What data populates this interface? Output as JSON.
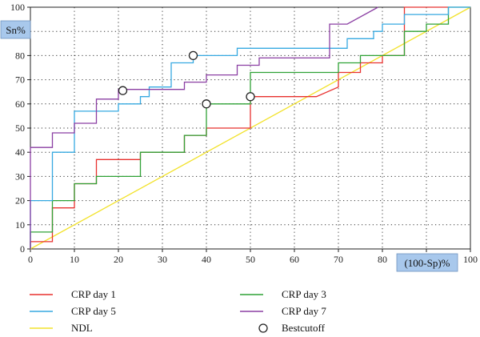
{
  "chart_data": {
    "type": "line",
    "xlabel": "(100-Sp)%",
    "ylabel": "Sn%",
    "xlim": [
      0,
      100
    ],
    "ylim": [
      0,
      100
    ],
    "x_ticks": [
      "0",
      "10",
      "20",
      "30",
      "40",
      "50",
      "60",
      "70",
      "80",
      "90",
      "100"
    ],
    "y_ticks": [
      "0",
      "10",
      "20",
      "30",
      "40",
      "50",
      "60",
      "70",
      "80",
      "90",
      "100"
    ],
    "grid": true,
    "legend_position": "bottom",
    "series": [
      {
        "name": "CRP day 1",
        "color": "#e8312f",
        "step": true,
        "points": [
          [
            0,
            0
          ],
          [
            0,
            3
          ],
          [
            5,
            3
          ],
          [
            5,
            17
          ],
          [
            10,
            17
          ],
          [
            10,
            27
          ],
          [
            15,
            27
          ],
          [
            15,
            37
          ],
          [
            25,
            37
          ],
          [
            25,
            40
          ],
          [
            35,
            40
          ],
          [
            35,
            47
          ],
          [
            40,
            47
          ],
          [
            40,
            50
          ],
          [
            50,
            50
          ],
          [
            50,
            63
          ],
          [
            65,
            63
          ],
          [
            70,
            67
          ],
          [
            70,
            73
          ],
          [
            75,
            73
          ],
          [
            75,
            77
          ],
          [
            80,
            77
          ],
          [
            80,
            80
          ],
          [
            85,
            80
          ],
          [
            85,
            100
          ],
          [
            95,
            100
          ]
        ]
      },
      {
        "name": "CRP day 3",
        "color": "#2fa236",
        "step": true,
        "points": [
          [
            0,
            0
          ],
          [
            0,
            7
          ],
          [
            5,
            7
          ],
          [
            5,
            20
          ],
          [
            10,
            20
          ],
          [
            10,
            27
          ],
          [
            15,
            27
          ],
          [
            15,
            30
          ],
          [
            20,
            30
          ],
          [
            25,
            30
          ],
          [
            25,
            40
          ],
          [
            35,
            40
          ],
          [
            35,
            47
          ],
          [
            40,
            47
          ],
          [
            40,
            60
          ],
          [
            50,
            60
          ],
          [
            50,
            73
          ],
          [
            70,
            73
          ],
          [
            70,
            77
          ],
          [
            75,
            77
          ],
          [
            75,
            80
          ],
          [
            85,
            80
          ],
          [
            85,
            90
          ],
          [
            90,
            90
          ],
          [
            90,
            93
          ],
          [
            95,
            93
          ],
          [
            95,
            100
          ],
          [
            100,
            100
          ]
        ]
      },
      {
        "name": "CRP day 5",
        "color": "#36a9e1",
        "step": true,
        "points": [
          [
            0,
            0
          ],
          [
            0,
            20
          ],
          [
            5,
            20
          ],
          [
            5,
            40
          ],
          [
            10,
            40
          ],
          [
            10,
            57
          ],
          [
            20,
            57
          ],
          [
            20,
            60
          ],
          [
            25,
            60
          ],
          [
            25,
            63
          ],
          [
            27,
            63
          ],
          [
            27,
            67
          ],
          [
            32,
            67
          ],
          [
            32,
            77
          ],
          [
            37,
            77
          ],
          [
            37,
            80
          ],
          [
            47,
            80
          ],
          [
            47,
            83
          ],
          [
            68,
            83
          ],
          [
            72,
            83
          ],
          [
            72,
            87
          ],
          [
            78,
            87
          ],
          [
            78,
            90
          ],
          [
            80,
            90
          ],
          [
            80,
            93
          ],
          [
            85,
            93
          ],
          [
            85,
            97
          ],
          [
            95,
            97
          ],
          [
            95,
            100
          ],
          [
            100,
            100
          ]
        ]
      },
      {
        "name": "CRP day 7",
        "color": "#8b3fa3",
        "step": true,
        "points": [
          [
            0,
            0
          ],
          [
            0,
            42
          ],
          [
            5,
            42
          ],
          [
            5,
            48
          ],
          [
            10,
            48
          ],
          [
            10,
            52
          ],
          [
            15,
            52
          ],
          [
            15,
            62
          ],
          [
            20,
            62
          ],
          [
            20,
            66
          ],
          [
            35,
            66
          ],
          [
            35,
            69
          ],
          [
            40,
            69
          ],
          [
            40,
            72
          ],
          [
            47,
            72
          ],
          [
            47,
            76
          ],
          [
            52,
            76
          ],
          [
            52,
            79
          ],
          [
            68,
            79
          ],
          [
            68,
            93
          ],
          [
            72,
            93
          ],
          [
            79,
            100
          ]
        ]
      },
      {
        "name": "NDL",
        "color": "#f2e22b",
        "step": false,
        "points": [
          [
            0,
            0
          ],
          [
            100,
            100
          ]
        ]
      }
    ],
    "bestcutoff": {
      "name": "Bestcutoff",
      "points": [
        [
          21,
          65.5
        ],
        [
          37,
          80
        ],
        [
          40,
          60
        ],
        [
          50,
          63
        ]
      ]
    }
  }
}
